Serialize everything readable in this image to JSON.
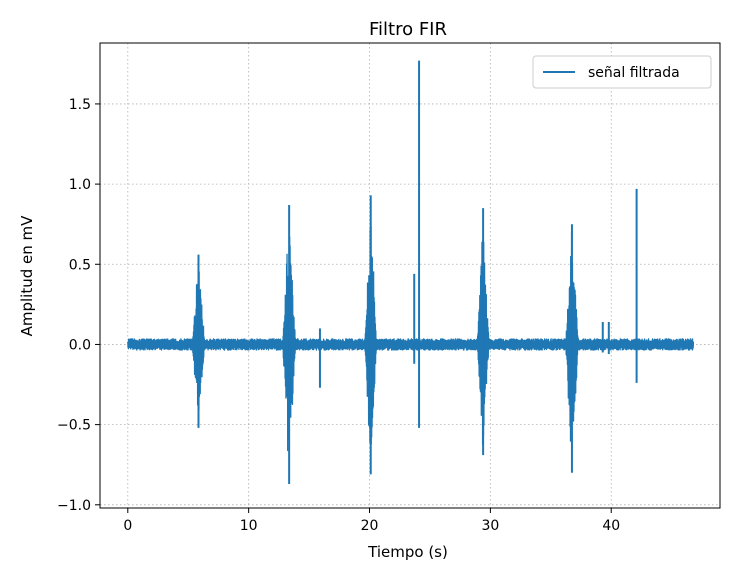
{
  "chart_data": {
    "type": "line",
    "title": "Filtro FIR",
    "xlabel": "Tiempo (s)",
    "ylabel": "Amplitud en mV",
    "xlim": [
      -2.3,
      49.0
    ],
    "ylim": [
      -1.02,
      1.88
    ],
    "xticks": [
      0,
      10,
      20,
      30,
      40
    ],
    "xtick_labels": [
      "0",
      "10",
      "20",
      "30",
      "40"
    ],
    "yticks": [
      -1.0,
      -0.5,
      0.0,
      0.5,
      1.0,
      1.5
    ],
    "ytick_labels": [
      "−1.0",
      "−0.5",
      "0.0",
      "0.5",
      "1.0",
      "1.5"
    ],
    "grid": true,
    "legend_position": "top-right",
    "series": [
      {
        "name": "señal filtrada",
        "color": "#1f77b4",
        "x_range": [
          0,
          46.8
        ],
        "baseline_noise": 0.025,
        "bursts": [
          {
            "start": 5.3,
            "end": 6.4,
            "max": 0.56,
            "min": -0.52
          },
          {
            "start": 12.8,
            "end": 13.9,
            "max": 0.87,
            "min": -0.87
          },
          {
            "start": 19.6,
            "end": 20.6,
            "max": 0.93,
            "min": -0.81
          },
          {
            "start": 28.9,
            "end": 29.9,
            "max": 0.85,
            "min": -0.69
          },
          {
            "start": 36.2,
            "end": 37.3,
            "max": 0.75,
            "min": -0.8
          }
        ],
        "spikes": [
          {
            "x": 15.9,
            "max": 0.1,
            "min": -0.27
          },
          {
            "x": 23.7,
            "max": 0.44,
            "min": -0.12
          },
          {
            "x": 24.1,
            "max": 1.77,
            "min": -0.52
          },
          {
            "x": 39.3,
            "max": 0.14,
            "min": -0.05
          },
          {
            "x": 39.8,
            "max": 0.14,
            "min": -0.06
          },
          {
            "x": 42.1,
            "max": 0.97,
            "min": -0.24
          }
        ]
      }
    ]
  }
}
